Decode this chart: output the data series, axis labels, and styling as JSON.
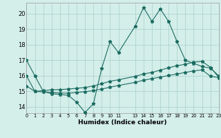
{
  "xlabel": "Humidex (Indice chaleur)",
  "bg_color": "#d4eeea",
  "grid_color": "#aed4ce",
  "line_color": "#1a6b60",
  "xlim": [
    0,
    23
  ],
  "ylim": [
    13.6,
    20.7
  ],
  "yticks": [
    14,
    15,
    16,
    17,
    18,
    19,
    20
  ],
  "xtick_positions": [
    0,
    1,
    2,
    3,
    4,
    5,
    6,
    7,
    8,
    9,
    10,
    11,
    13,
    14,
    15,
    16,
    17,
    18,
    19,
    20,
    21,
    22,
    23
  ],
  "xtick_labels": [
    "0",
    "1",
    "2",
    "3",
    "4",
    "5",
    "6",
    "7",
    "8",
    "9",
    "10",
    "11",
    "13",
    "14",
    "15",
    "16",
    "17",
    "18",
    "19",
    "20",
    "21",
    "22",
    "23"
  ],
  "line1_x": [
    0,
    1,
    2,
    3,
    4,
    5,
    6,
    7,
    8,
    9,
    10,
    11,
    13,
    14,
    15,
    16,
    17,
    18,
    19,
    20,
    21,
    22,
    23
  ],
  "line1_y": [
    17.0,
    16.0,
    15.0,
    14.85,
    14.8,
    14.75,
    14.3,
    13.65,
    14.2,
    16.5,
    18.2,
    17.5,
    19.2,
    20.4,
    19.5,
    20.3,
    19.5,
    18.2,
    17.0,
    16.8,
    16.6,
    16.5,
    16.0
  ],
  "line2_x": [
    0,
    1,
    2,
    3,
    4,
    5,
    6,
    7,
    8,
    9,
    10,
    11,
    13,
    14,
    15,
    16,
    17,
    18,
    19,
    20,
    21,
    22,
    23
  ],
  "line2_y": [
    16.0,
    15.0,
    15.05,
    15.1,
    15.12,
    15.15,
    15.2,
    15.25,
    15.35,
    15.5,
    15.65,
    15.75,
    15.97,
    16.12,
    16.22,
    16.37,
    16.52,
    16.65,
    16.75,
    16.88,
    16.93,
    16.55,
    15.9
  ],
  "line3_x": [
    0,
    1,
    2,
    3,
    4,
    5,
    6,
    7,
    8,
    9,
    10,
    11,
    13,
    14,
    15,
    16,
    17,
    18,
    19,
    20,
    21,
    22,
    23
  ],
  "line3_y": [
    15.35,
    15.0,
    14.97,
    14.92,
    14.9,
    14.88,
    14.93,
    14.98,
    15.05,
    15.15,
    15.27,
    15.38,
    15.58,
    15.72,
    15.82,
    15.92,
    16.02,
    16.12,
    16.22,
    16.32,
    16.38,
    15.98,
    15.88
  ]
}
